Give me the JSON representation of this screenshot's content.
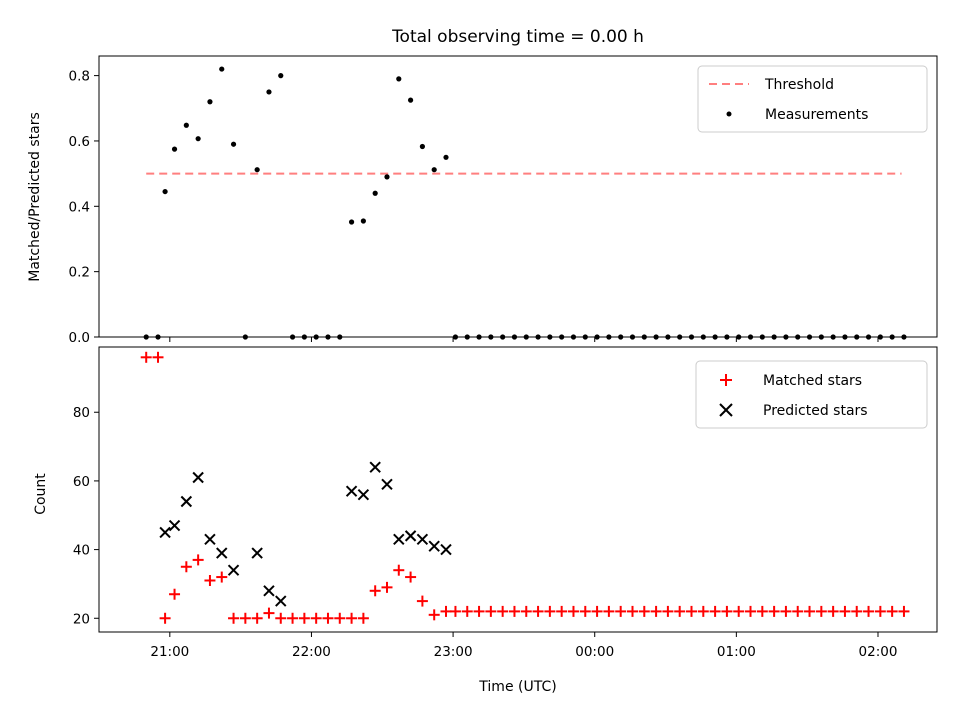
{
  "chart_data": [
    {
      "type": "scatter",
      "title": "Total observing time = 0.00 h",
      "ylabel": "Matched/Predicted stars",
      "ylim": [
        0,
        0.86
      ],
      "yticks": [
        0.0,
        0.2,
        0.4,
        0.6,
        0.8
      ],
      "ytick_labels": [
        "0.0",
        "0.2",
        "0.4",
        "0.6",
        "0.8"
      ],
      "threshold": {
        "name": "Threshold",
        "y": 0.5,
        "x_start": "20:50",
        "x_end": "02:10",
        "color": "#ff7f7f"
      },
      "legend": [
        "Threshold",
        "Measurements"
      ],
      "legend_position": "top-right",
      "series": [
        {
          "name": "Measurements",
          "color": "#000000",
          "points": [
            [
              "20:50",
              0.0
            ],
            [
              "20:55",
              0.0
            ],
            [
              "20:58",
              0.445
            ],
            [
              "21:02",
              0.575
            ],
            [
              "21:07",
              0.648
            ],
            [
              "21:12",
              0.607
            ],
            [
              "21:17",
              0.72
            ],
            [
              "21:22",
              0.82
            ],
            [
              "21:27",
              0.59
            ],
            [
              "21:32",
              0.0
            ],
            [
              "21:37",
              0.512
            ],
            [
              "21:42",
              0.75
            ],
            [
              "21:47",
              0.8
            ],
            [
              "21:52",
              0.0
            ],
            [
              "21:57",
              0.0
            ],
            [
              "22:02",
              0.0
            ],
            [
              "22:07",
              0.0
            ],
            [
              "22:12",
              0.0
            ],
            [
              "22:17",
              0.352
            ],
            [
              "22:22",
              0.355
            ],
            [
              "22:27",
              0.44
            ],
            [
              "22:32",
              0.49
            ],
            [
              "22:37",
              0.79
            ],
            [
              "22:42",
              0.725
            ],
            [
              "22:47",
              0.583
            ],
            [
              "22:52",
              0.512
            ],
            [
              "22:57",
              0.55
            ],
            [
              "23:01",
              0.0
            ],
            [
              "23:06",
              0.0
            ],
            [
              "23:11",
              0.0
            ],
            [
              "23:16",
              0.0
            ],
            [
              "23:21",
              0.0
            ],
            [
              "23:26",
              0.0
            ],
            [
              "23:31",
              0.0
            ],
            [
              "23:36",
              0.0
            ],
            [
              "23:41",
              0.0
            ],
            [
              "23:46",
              0.0
            ],
            [
              "23:51",
              0.0
            ],
            [
              "23:56",
              0.0
            ],
            [
              "00:01",
              0.0
            ],
            [
              "00:06",
              0.0
            ],
            [
              "00:11",
              0.0
            ],
            [
              "00:16",
              0.0
            ],
            [
              "00:21",
              0.0
            ],
            [
              "00:26",
              0.0
            ],
            [
              "00:31",
              0.0
            ],
            [
              "00:36",
              0.0
            ],
            [
              "00:41",
              0.0
            ],
            [
              "00:46",
              0.0
            ],
            [
              "00:51",
              0.0
            ],
            [
              "00:56",
              0.0
            ],
            [
              "01:01",
              0.0
            ],
            [
              "01:06",
              0.0
            ],
            [
              "01:11",
              0.0
            ],
            [
              "01:16",
              0.0
            ],
            [
              "01:21",
              0.0
            ],
            [
              "01:26",
              0.0
            ],
            [
              "01:31",
              0.0
            ],
            [
              "01:36",
              0.0
            ],
            [
              "01:41",
              0.0
            ],
            [
              "01:46",
              0.0
            ],
            [
              "01:51",
              0.0
            ],
            [
              "01:56",
              0.0
            ],
            [
              "02:01",
              0.0
            ],
            [
              "02:06",
              0.0
            ],
            [
              "02:11",
              0.0
            ]
          ]
        }
      ]
    },
    {
      "type": "scatter",
      "xlabel": "Time (UTC)",
      "ylabel": "Count",
      "ylim": [
        16,
        99
      ],
      "yticks": [
        20,
        40,
        60,
        80
      ],
      "ytick_labels": [
        "20",
        "40",
        "60",
        "80"
      ],
      "xlim": [
        "20:30",
        "02:25"
      ],
      "xticks": [
        "21:00",
        "22:00",
        "23:00",
        "00:00",
        "01:00",
        "02:00"
      ],
      "xtick_labels": [
        "21:00",
        "22:00",
        "23:00",
        "00:00",
        "01:00",
        "02:00"
      ],
      "legend": [
        "Matched stars",
        "Predicted stars"
      ],
      "legend_position": "top-right",
      "series": [
        {
          "name": "Matched stars",
          "marker": "+",
          "color": "#ff0000",
          "points": [
            [
              "20:50",
              96
            ],
            [
              "20:55",
              96
            ],
            [
              "20:58",
              20
            ],
            [
              "21:02",
              27
            ],
            [
              "21:07",
              35
            ],
            [
              "21:12",
              37
            ],
            [
              "21:17",
              31
            ],
            [
              "21:22",
              32
            ],
            [
              "21:27",
              20
            ],
            [
              "21:32",
              20
            ],
            [
              "21:37",
              20
            ],
            [
              "21:42",
              21.5
            ],
            [
              "21:47",
              20
            ],
            [
              "21:52",
              20
            ],
            [
              "21:57",
              20
            ],
            [
              "22:02",
              20
            ],
            [
              "22:07",
              20
            ],
            [
              "22:12",
              20
            ],
            [
              "22:17",
              20
            ],
            [
              "22:22",
              20
            ],
            [
              "22:27",
              28
            ],
            [
              "22:32",
              29
            ],
            [
              "22:37",
              34
            ],
            [
              "22:42",
              32
            ],
            [
              "22:47",
              25
            ],
            [
              "22:52",
              21
            ],
            [
              "22:57",
              22
            ],
            [
              "23:01",
              22
            ],
            [
              "23:06",
              22
            ],
            [
              "23:11",
              22
            ],
            [
              "23:16",
              22
            ],
            [
              "23:21",
              22
            ],
            [
              "23:26",
              22
            ],
            [
              "23:31",
              22
            ],
            [
              "23:36",
              22
            ],
            [
              "23:41",
              22
            ],
            [
              "23:46",
              22
            ],
            [
              "23:51",
              22
            ],
            [
              "23:56",
              22
            ],
            [
              "00:01",
              22
            ],
            [
              "00:06",
              22
            ],
            [
              "00:11",
              22
            ],
            [
              "00:16",
              22
            ],
            [
              "00:21",
              22
            ],
            [
              "00:26",
              22
            ],
            [
              "00:31",
              22
            ],
            [
              "00:36",
              22
            ],
            [
              "00:41",
              22
            ],
            [
              "00:46",
              22
            ],
            [
              "00:51",
              22
            ],
            [
              "00:56",
              22
            ],
            [
              "01:01",
              22
            ],
            [
              "01:06",
              22
            ],
            [
              "01:11",
              22
            ],
            [
              "01:16",
              22
            ],
            [
              "01:21",
              22
            ],
            [
              "01:26",
              22
            ],
            [
              "01:31",
              22
            ],
            [
              "01:36",
              22
            ],
            [
              "01:41",
              22
            ],
            [
              "01:46",
              22
            ],
            [
              "01:51",
              22
            ],
            [
              "01:56",
              22
            ],
            [
              "02:01",
              22
            ],
            [
              "02:06",
              22
            ],
            [
              "02:11",
              22
            ]
          ]
        },
        {
          "name": "Predicted stars",
          "marker": "x",
          "color": "#000000",
          "points": [
            [
              "20:58",
              45
            ],
            [
              "21:02",
              47
            ],
            [
              "21:07",
              54
            ],
            [
              "21:12",
              61
            ],
            [
              "21:17",
              43
            ],
            [
              "21:22",
              39
            ],
            [
              "21:27",
              34
            ],
            [
              "21:37",
              39
            ],
            [
              "21:42",
              28
            ],
            [
              "21:47",
              25
            ],
            [
              "22:17",
              57
            ],
            [
              "22:22",
              56
            ],
            [
              "22:27",
              64
            ],
            [
              "22:32",
              59
            ],
            [
              "22:37",
              43
            ],
            [
              "22:42",
              44
            ],
            [
              "22:47",
              43
            ],
            [
              "22:52",
              41
            ],
            [
              "22:57",
              40
            ]
          ]
        }
      ]
    }
  ]
}
